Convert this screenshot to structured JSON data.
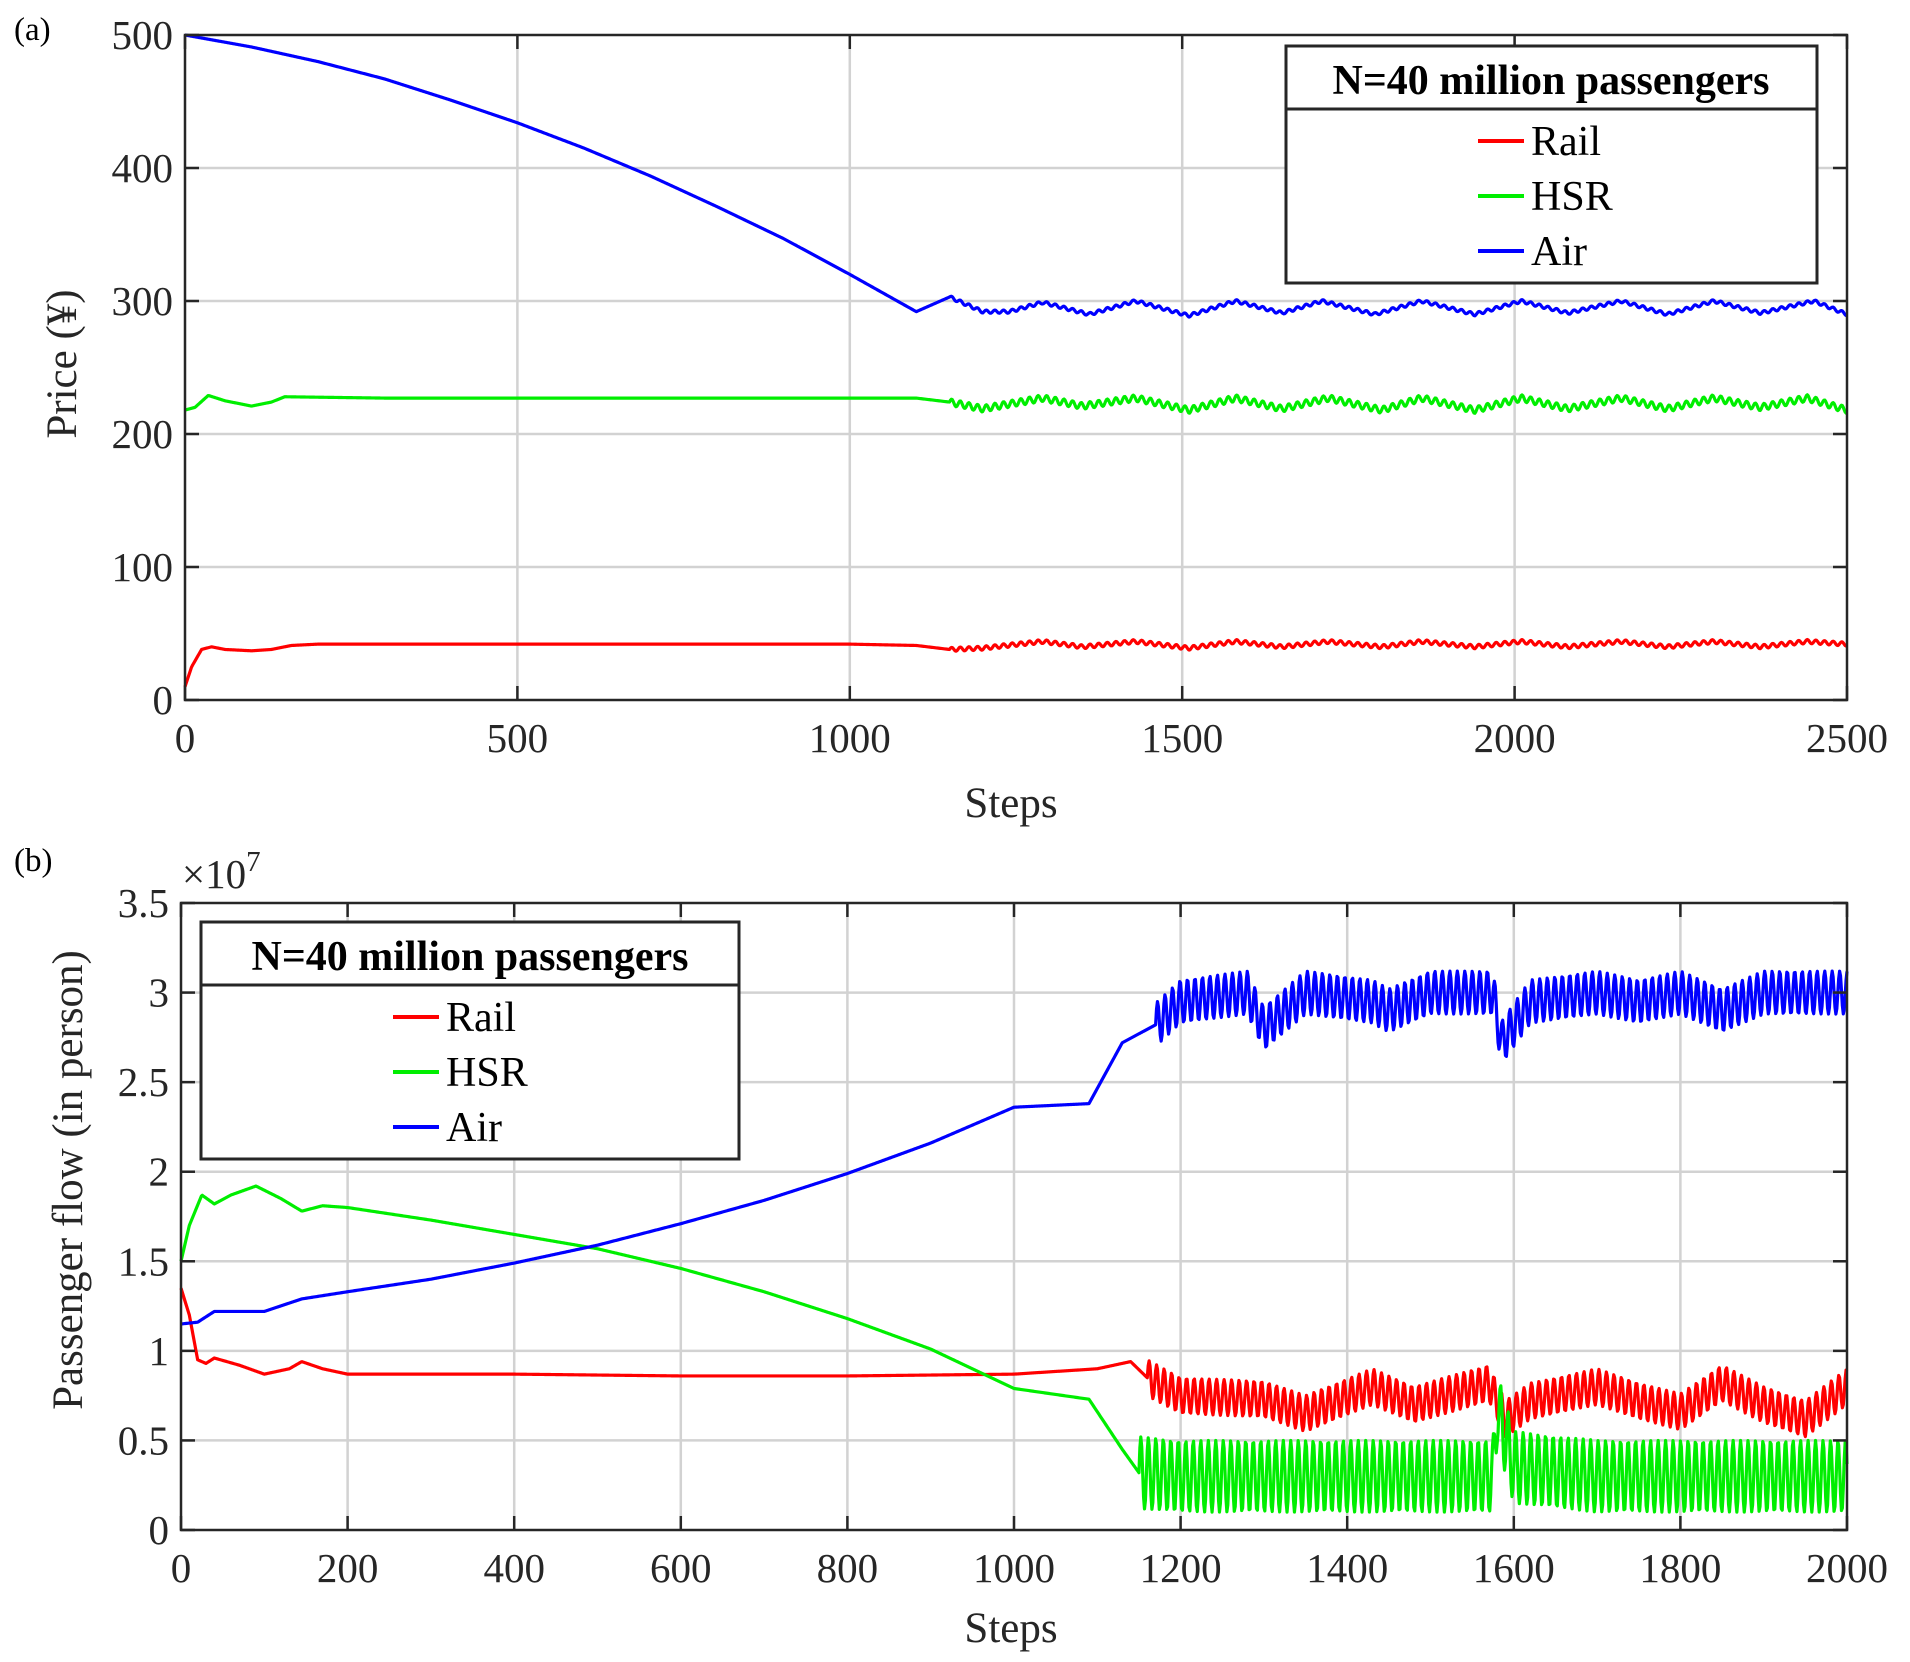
{
  "chart_data": [
    {
      "type": "line",
      "panel_label": "(a)",
      "xlabel": "Steps",
      "ylabel": "Price (¥)",
      "xlim": [
        0,
        2500
      ],
      "ylim": [
        0,
        500
      ],
      "xticks": [
        "0",
        "500",
        "1000",
        "1500",
        "2000",
        "2500"
      ],
      "yticks": [
        "0",
        "100",
        "200",
        "300",
        "400",
        "500"
      ],
      "grid": true,
      "legend": {
        "title": "N=40 million passengers",
        "position": "top-right",
        "entries": [
          "Rail",
          "HSR",
          "Air"
        ]
      },
      "series": [
        {
          "name": "Rail",
          "color": "#ff0000",
          "points": [
            [
              0,
              10
            ],
            [
              10,
              25
            ],
            [
              25,
              38
            ],
            [
              40,
              40
            ],
            [
              60,
              38
            ],
            [
              100,
              37
            ],
            [
              130,
              38
            ],
            [
              160,
              41
            ],
            [
              200,
              42
            ],
            [
              400,
              42
            ],
            [
              700,
              42
            ],
            [
              1000,
              42
            ],
            [
              1100,
              41
            ],
            [
              1150,
              38
            ],
            [
              1200,
              39
            ],
            [
              1290,
              44
            ],
            [
              1350,
              40
            ],
            [
              1430,
              44
            ],
            [
              1510,
              39
            ],
            [
              1580,
              44
            ],
            [
              1650,
              40
            ],
            [
              1720,
              44
            ],
            [
              1800,
              40
            ],
            [
              1860,
              44
            ],
            [
              1940,
              40
            ],
            [
              2010,
              44
            ],
            [
              2080,
              40
            ],
            [
              2160,
              44
            ],
            [
              2230,
              40
            ],
            [
              2300,
              44
            ],
            [
              2370,
              40
            ],
            [
              2440,
              44
            ],
            [
              2500,
              42
            ]
          ],
          "osc": {
            "start": 1150,
            "amp": 1.5,
            "period": 13
          }
        },
        {
          "name": "HSR",
          "color": "#00ee00",
          "points": [
            [
              0,
              218
            ],
            [
              15,
              220
            ],
            [
              35,
              229
            ],
            [
              60,
              225
            ],
            [
              100,
              221
            ],
            [
              130,
              224
            ],
            [
              150,
              228
            ],
            [
              300,
              227
            ],
            [
              700,
              227
            ],
            [
              1100,
              227
            ],
            [
              1150,
              224
            ],
            [
              1200,
              219
            ],
            [
              1290,
              227
            ],
            [
              1350,
              221
            ],
            [
              1430,
              227
            ],
            [
              1510,
              218
            ],
            [
              1580,
              227
            ],
            [
              1650,
              219
            ],
            [
              1720,
              227
            ],
            [
              1800,
              218
            ],
            [
              1860,
              227
            ],
            [
              1940,
              218
            ],
            [
              2010,
              227
            ],
            [
              2080,
              219
            ],
            [
              2160,
              227
            ],
            [
              2230,
              219
            ],
            [
              2300,
              227
            ],
            [
              2370,
              220
            ],
            [
              2440,
              227
            ],
            [
              2500,
              218
            ]
          ],
          "osc": {
            "start": 1150,
            "amp": 2.5,
            "period": 13
          }
        },
        {
          "name": "Air",
          "color": "#0000ff",
          "points": [
            [
              0,
              500
            ],
            [
              100,
              491
            ],
            [
              200,
              480
            ],
            [
              300,
              467
            ],
            [
              400,
              451
            ],
            [
              500,
              434
            ],
            [
              600,
              415
            ],
            [
              700,
              394
            ],
            [
              800,
              371
            ],
            [
              900,
              347
            ],
            [
              1000,
              320
            ],
            [
              1100,
              292
            ],
            [
              1150,
              303
            ],
            [
              1200,
              292
            ],
            [
              1240,
              292
            ],
            [
              1290,
              299
            ],
            [
              1360,
              290
            ],
            [
              1430,
              300
            ],
            [
              1510,
              289
            ],
            [
              1580,
              300
            ],
            [
              1650,
              291
            ],
            [
              1710,
              300
            ],
            [
              1790,
              290
            ],
            [
              1860,
              300
            ],
            [
              1940,
              290
            ],
            [
              2010,
              300
            ],
            [
              2080,
              291
            ],
            [
              2160,
              300
            ],
            [
              2230,
              290
            ],
            [
              2300,
              300
            ],
            [
              2370,
              291
            ],
            [
              2450,
              300
            ],
            [
              2500,
              290
            ]
          ],
          "osc": {
            "start": 1150,
            "amp": 1.2,
            "period": 13
          }
        }
      ]
    },
    {
      "type": "line",
      "panel_label": "(b)",
      "xlabel": "Steps",
      "ylabel": "Passenger flow (in person)",
      "y_multiplier": "×10",
      "y_multiplier_exp": "7",
      "xlim": [
        0,
        2000
      ],
      "ylim": [
        0,
        3.5
      ],
      "xticks": [
        "0",
        "200",
        "400",
        "600",
        "800",
        "1000",
        "1200",
        "1400",
        "1600",
        "1800",
        "2000"
      ],
      "yticks": [
        "0",
        "0.5",
        "1",
        "1.5",
        "2",
        "2.5",
        "3",
        "3.5"
      ],
      "grid": true,
      "legend": {
        "title": "N=40 million passengers",
        "position": "top-left",
        "entries": [
          "Rail",
          "HSR",
          "Air"
        ]
      },
      "series": [
        {
          "name": "Rail",
          "color": "#ff0000",
          "points": [
            [
              0,
              1.35
            ],
            [
              10,
              1.2
            ],
            [
              20,
              0.95
            ],
            [
              30,
              0.93
            ],
            [
              40,
              0.96
            ],
            [
              70,
              0.92
            ],
            [
              100,
              0.87
            ],
            [
              130,
              0.9
            ],
            [
              145,
              0.94
            ],
            [
              170,
              0.9
            ],
            [
              200,
              0.87
            ],
            [
              400,
              0.87
            ],
            [
              600,
              0.86
            ],
            [
              800,
              0.86
            ],
            [
              1000,
              0.87
            ],
            [
              1100,
              0.9
            ],
            [
              1140,
              0.94
            ],
            [
              1160,
              0.85
            ],
            [
              1200,
              0.75
            ],
            [
              1300,
              0.73
            ],
            [
              1350,
              0.65
            ],
            [
              1430,
              0.8
            ],
            [
              1480,
              0.7
            ],
            [
              1570,
              0.82
            ],
            [
              1590,
              0.62
            ],
            [
              1620,
              0.72
            ],
            [
              1700,
              0.8
            ],
            [
              1750,
              0.72
            ],
            [
              1800,
              0.66
            ],
            [
              1850,
              0.82
            ],
            [
              1900,
              0.7
            ],
            [
              1950,
              0.62
            ],
            [
              2000,
              0.8
            ]
          ],
          "osc": {
            "start": 1160,
            "amp": 0.1,
            "period": 9
          }
        },
        {
          "name": "HSR",
          "color": "#00ee00",
          "points": [
            [
              0,
              1.5
            ],
            [
              10,
              1.7
            ],
            [
              25,
              1.87
            ],
            [
              40,
              1.82
            ],
            [
              60,
              1.87
            ],
            [
              90,
              1.92
            ],
            [
              120,
              1.85
            ],
            [
              145,
              1.78
            ],
            [
              170,
              1.81
            ],
            [
              200,
              1.8
            ],
            [
              300,
              1.73
            ],
            [
              400,
              1.65
            ],
            [
              500,
              1.57
            ],
            [
              600,
              1.46
            ],
            [
              700,
              1.33
            ],
            [
              800,
              1.18
            ],
            [
              900,
              1.01
            ],
            [
              1000,
              0.79
            ],
            [
              1090,
              0.73
            ],
            [
              1130,
              0.45
            ],
            [
              1150,
              0.32
            ],
            [
              1200,
              0.3
            ],
            [
              1300,
              0.3
            ],
            [
              1400,
              0.3
            ],
            [
              1500,
              0.3
            ],
            [
              1575,
              0.3
            ],
            [
              1580,
              0.68
            ],
            [
              1600,
              0.35
            ],
            [
              1700,
              0.3
            ],
            [
              1800,
              0.3
            ],
            [
              1900,
              0.3
            ],
            [
              2000,
              0.3
            ]
          ],
          "osc": {
            "start": 1150,
            "amp": 0.2,
            "period": 9
          }
        },
        {
          "name": "Air",
          "color": "#0000ff",
          "points": [
            [
              0,
              1.15
            ],
            [
              20,
              1.16
            ],
            [
              40,
              1.22
            ],
            [
              100,
              1.22
            ],
            [
              145,
              1.29
            ],
            [
              200,
              1.33
            ],
            [
              300,
              1.4
            ],
            [
              400,
              1.49
            ],
            [
              500,
              1.59
            ],
            [
              600,
              1.71
            ],
            [
              700,
              1.84
            ],
            [
              800,
              1.99
            ],
            [
              900,
              2.16
            ],
            [
              1000,
              2.36
            ],
            [
              1090,
              2.38
            ],
            [
              1130,
              2.72
            ],
            [
              1170,
              2.82
            ],
            [
              1200,
              2.95
            ],
            [
              1280,
              3.0
            ],
            [
              1300,
              2.8
            ],
            [
              1350,
              3.0
            ],
            [
              1430,
              2.95
            ],
            [
              1450,
              2.9
            ],
            [
              1500,
              3.0
            ],
            [
              1575,
              3.0
            ],
            [
              1585,
              2.72
            ],
            [
              1620,
              2.95
            ],
            [
              1700,
              3.0
            ],
            [
              1750,
              2.95
            ],
            [
              1800,
              3.0
            ],
            [
              1850,
              2.9
            ],
            [
              1900,
              3.0
            ],
            [
              2000,
              3.0
            ]
          ],
          "osc": {
            "start": 1170,
            "amp": 0.12,
            "period": 9
          }
        }
      ]
    }
  ]
}
